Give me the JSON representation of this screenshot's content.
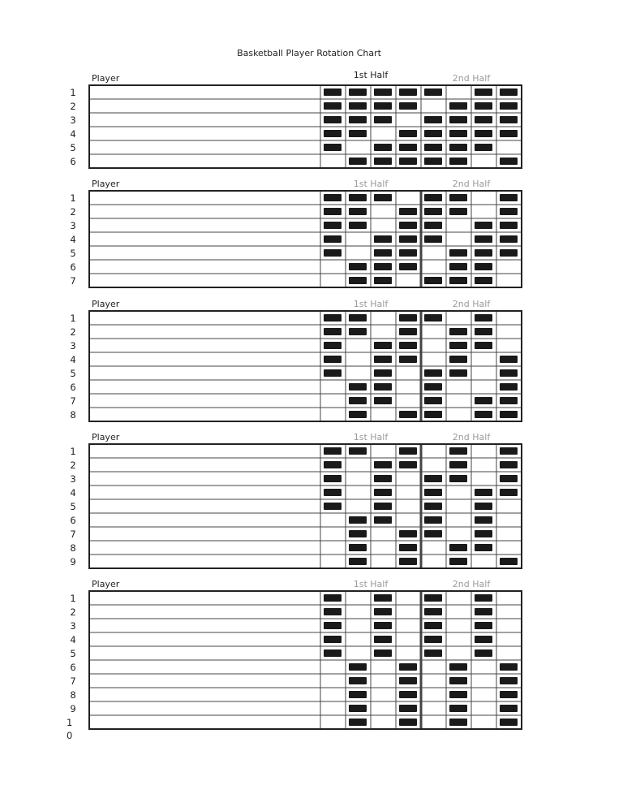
{
  "title": "Basketball Player Rotation Chart",
  "tables": [
    {
      "player_header": "Player",
      "first_half": "1st Half",
      "second_half": "2nd Half",
      "rows": [
        {
          "number": "1",
          "slots": [
            1,
            1,
            1,
            1,
            1,
            0,
            1,
            1
          ]
        },
        {
          "number": "2",
          "slots": [
            1,
            1,
            1,
            1,
            0,
            1,
            1,
            1
          ]
        },
        {
          "number": "3",
          "slots": [
            1,
            1,
            1,
            0,
            1,
            1,
            1,
            1
          ]
        },
        {
          "number": "4",
          "slots": [
            1,
            1,
            0,
            1,
            1,
            1,
            1,
            1
          ]
        },
        {
          "number": "5",
          "slots": [
            1,
            0,
            1,
            1,
            1,
            1,
            1,
            0
          ]
        },
        {
          "number": "6",
          "slots": [
            0,
            1,
            1,
            1,
            1,
            1,
            0,
            1
          ]
        }
      ]
    },
    {
      "player_header": "Player",
      "first_half": "1st Half",
      "second_half": "2nd Half",
      "rows": [
        {
          "number": "1",
          "slots": [
            1,
            1,
            1,
            0,
            1,
            1,
            0,
            1
          ]
        },
        {
          "number": "2",
          "slots": [
            1,
            1,
            0,
            1,
            1,
            1,
            0,
            1
          ]
        },
        {
          "number": "3",
          "slots": [
            1,
            1,
            0,
            1,
            1,
            0,
            1,
            1
          ]
        },
        {
          "number": "4",
          "slots": [
            1,
            0,
            1,
            1,
            1,
            0,
            1,
            1
          ]
        },
        {
          "number": "5",
          "slots": [
            1,
            0,
            1,
            1,
            0,
            1,
            1,
            1
          ]
        },
        {
          "number": "6",
          "slots": [
            0,
            1,
            1,
            1,
            0,
            1,
            1,
            0
          ]
        },
        {
          "number": "7",
          "slots": [
            0,
            1,
            1,
            0,
            1,
            1,
            1,
            0
          ]
        }
      ]
    },
    {
      "player_header": "Player",
      "first_half": "1st Half",
      "second_half": "2nd Half",
      "rows": [
        {
          "number": "1",
          "slots": [
            1,
            1,
            0,
            1,
            1,
            0,
            1,
            0
          ]
        },
        {
          "number": "2",
          "slots": [
            1,
            1,
            0,
            1,
            0,
            1,
            1,
            0
          ]
        },
        {
          "number": "3",
          "slots": [
            1,
            0,
            1,
            1,
            0,
            1,
            1,
            0
          ]
        },
        {
          "number": "4",
          "slots": [
            1,
            0,
            1,
            1,
            0,
            1,
            0,
            1
          ]
        },
        {
          "number": "5",
          "slots": [
            1,
            0,
            1,
            0,
            1,
            1,
            0,
            1
          ]
        },
        {
          "number": "6",
          "slots": [
            0,
            1,
            1,
            0,
            1,
            0,
            0,
            1
          ]
        },
        {
          "number": "7",
          "slots": [
            0,
            1,
            1,
            0,
            1,
            0,
            1,
            1
          ]
        },
        {
          "number": "8",
          "slots": [
            0,
            1,
            0,
            1,
            1,
            0,
            1,
            1
          ]
        }
      ]
    },
    {
      "player_header": "Player",
      "first_half": "1st Half",
      "second_half": "2nd Half",
      "rows": [
        {
          "number": "1",
          "slots": [
            1,
            1,
            0,
            1,
            0,
            1,
            0,
            1
          ]
        },
        {
          "number": "2",
          "slots": [
            1,
            0,
            1,
            1,
            0,
            1,
            0,
            1
          ]
        },
        {
          "number": "3",
          "slots": [
            1,
            0,
            1,
            0,
            1,
            1,
            0,
            1
          ]
        },
        {
          "number": "4",
          "slots": [
            1,
            0,
            1,
            0,
            1,
            0,
            1,
            1
          ]
        },
        {
          "number": "5",
          "slots": [
            1,
            0,
            1,
            0,
            1,
            0,
            1,
            0
          ]
        },
        {
          "number": "6",
          "slots": [
            0,
            1,
            1,
            0,
            1,
            0,
            1,
            0
          ]
        },
        {
          "number": "7",
          "slots": [
            0,
            1,
            0,
            1,
            1,
            0,
            1,
            0
          ]
        },
        {
          "number": "8",
          "slots": [
            0,
            1,
            0,
            1,
            0,
            1,
            1,
            0
          ]
        },
        {
          "number": "9",
          "slots": [
            0,
            1,
            0,
            1,
            0,
            1,
            0,
            1
          ]
        }
      ]
    },
    {
      "player_header": "Player",
      "first_half": "1st Half",
      "second_half": "2nd Half",
      "rows": [
        {
          "number": "1",
          "slots": [
            1,
            0,
            1,
            0,
            1,
            0,
            1,
            0
          ]
        },
        {
          "number": "2",
          "slots": [
            1,
            0,
            1,
            0,
            1,
            0,
            1,
            0
          ]
        },
        {
          "number": "3",
          "slots": [
            1,
            0,
            1,
            0,
            1,
            0,
            1,
            0
          ]
        },
        {
          "number": "4",
          "slots": [
            1,
            0,
            1,
            0,
            1,
            0,
            1,
            0
          ]
        },
        {
          "number": "5",
          "slots": [
            1,
            0,
            1,
            0,
            1,
            0,
            1,
            0
          ]
        },
        {
          "number": "6",
          "slots": [
            0,
            1,
            0,
            1,
            0,
            1,
            0,
            1
          ]
        },
        {
          "number": "7",
          "slots": [
            0,
            1,
            0,
            1,
            0,
            1,
            0,
            1
          ]
        },
        {
          "number": "8",
          "slots": [
            0,
            1,
            0,
            1,
            0,
            1,
            0,
            1
          ]
        },
        {
          "number": "9",
          "slots": [
            0,
            1,
            0,
            1,
            0,
            1,
            0,
            1
          ]
        },
        {
          "number": "10",
          "slots": [
            0,
            1,
            0,
            1,
            0,
            1,
            0,
            1
          ]
        }
      ]
    }
  ]
}
